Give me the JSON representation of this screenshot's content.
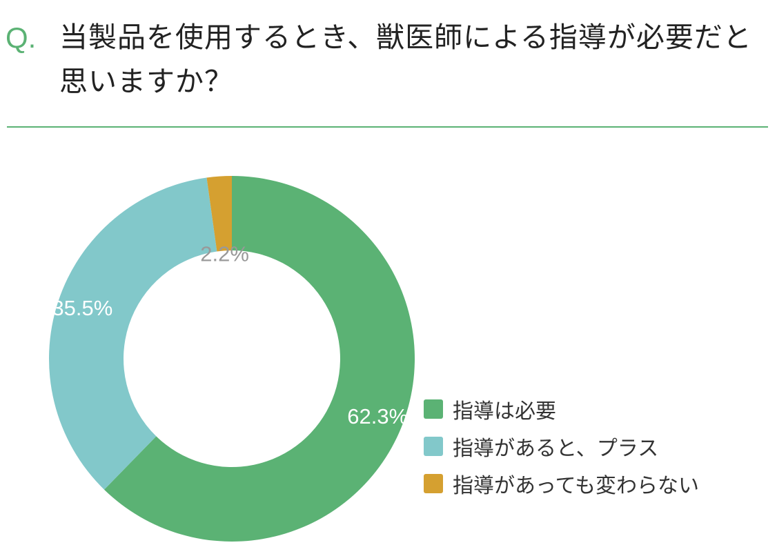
{
  "question": {
    "mark": "Q.",
    "text": "当製品を使用するとき、獣医師による指導が必要だと思いますか？"
  },
  "chart_data": {
    "type": "pie",
    "donut": true,
    "categories": [
      "指導は必要",
      "指導があると、プラス",
      "指導があっても変わらない"
    ],
    "values": [
      62.3,
      35.5,
      2.2
    ],
    "data_labels": [
      "62.3%",
      "35.5%",
      "2.2%"
    ],
    "colors": [
      "#5bb274",
      "#82c8ca",
      "#d5a030"
    ],
    "label_colors": [
      "#ffffff",
      "#ffffff",
      "#999999"
    ],
    "start": "12 o'clock",
    "direction": "clockwise",
    "legend_position": "right-bottom"
  }
}
